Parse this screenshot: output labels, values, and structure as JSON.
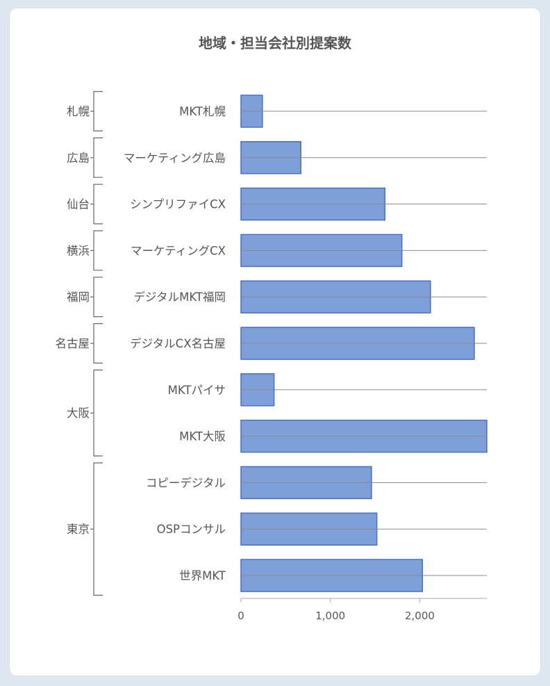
{
  "chart_data": {
    "type": "bar",
    "orientation": "horizontal",
    "title": "地域・担当会社別提案数",
    "xlabel": "",
    "ylabel": "",
    "xlim": [
      0,
      2750
    ],
    "x_ticks": [
      0,
      1000,
      2000
    ],
    "x_tick_labels": [
      "0",
      "1,000",
      "2,000"
    ],
    "groups": [
      {
        "name": "札幌",
        "categories": [
          "MKT札幌"
        ]
      },
      {
        "name": "広島",
        "categories": [
          "マーケティング広島"
        ]
      },
      {
        "name": "仙台",
        "categories": [
          "シンプリファイCX"
        ]
      },
      {
        "name": "横浜",
        "categories": [
          "マーケティングCX"
        ]
      },
      {
        "name": "福岡",
        "categories": [
          "デジタルMKT福岡"
        ]
      },
      {
        "name": "名古屋",
        "categories": [
          "デジタルCX名古屋"
        ]
      },
      {
        "name": "大阪",
        "categories": [
          "MKTパイサ",
          "MKT大阪"
        ]
      },
      {
        "name": "東京",
        "categories": [
          "コピーデジタル",
          "OSPコンサル",
          "世界MKT"
        ]
      }
    ],
    "categories": [
      "MKT札幌",
      "マーケティング広島",
      "シンプリファイCX",
      "マーケティングCX",
      "デジタルMKT福岡",
      "デジタルCX名古屋",
      "MKTパイサ",
      "MKT大阪",
      "コピーデジタル",
      "OSPコンサル",
      "世界MKT"
    ],
    "values": [
      240,
      670,
      1610,
      1800,
      2120,
      2610,
      370,
      2750,
      1460,
      1520,
      2030
    ],
    "colors": {
      "bar_fill": "#7f9fd8",
      "bar_stroke": "#4a6fc2",
      "grid": "#888888",
      "text": "#555555"
    }
  }
}
